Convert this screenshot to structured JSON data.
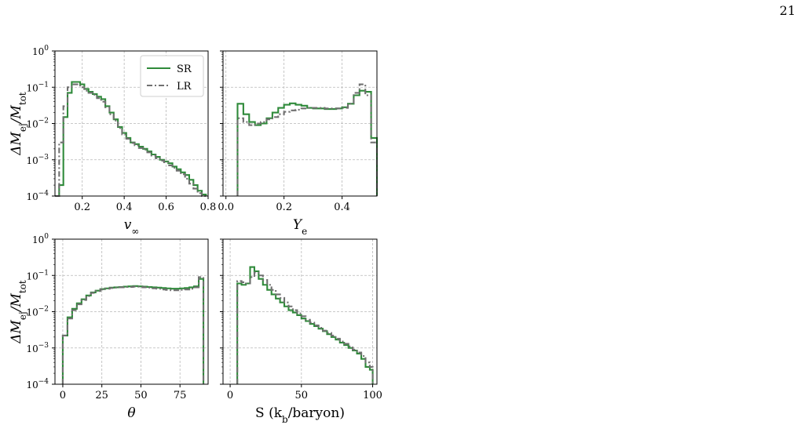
{
  "page": {
    "number": "21"
  },
  "colors": {
    "SR": "#2f8a3a",
    "LR": "#707070",
    "grid": "#b8b8b8"
  },
  "chart_data": [
    {
      "type": "histogram",
      "id": "vinf",
      "xlabel": "v_∞",
      "ylabel": "ΔM_ej/M_tot",
      "xlim": [
        0.07,
        0.8
      ],
      "ylim": [
        0.0001,
        1
      ],
      "yscale": "log",
      "xticks": [
        0.2,
        0.4,
        0.6,
        0.8
      ],
      "xtick_labels": [
        "0.2",
        "0.4",
        "0.6",
        "0.8"
      ],
      "yticks_exp": [
        -4,
        -3,
        -2,
        -1,
        0
      ],
      "grid": true,
      "legend": {
        "location": "upper right",
        "entries": [
          "SR",
          "LR"
        ]
      },
      "series": [
        {
          "name": "SR",
          "style": "solid",
          "edges": [
            0.07,
            0.09,
            0.11,
            0.13,
            0.15,
            0.17,
            0.19,
            0.21,
            0.23,
            0.25,
            0.27,
            0.29,
            0.31,
            0.33,
            0.35,
            0.37,
            0.39,
            0.41,
            0.43,
            0.45,
            0.47,
            0.49,
            0.51,
            0.53,
            0.55,
            0.57,
            0.59,
            0.61,
            0.63,
            0.65,
            0.67,
            0.69,
            0.71,
            0.73,
            0.75,
            0.77,
            0.79
          ],
          "values": [
            0.0001,
            0.0002,
            0.015,
            0.07,
            0.14,
            0.14,
            0.12,
            0.09,
            0.075,
            0.065,
            0.055,
            0.047,
            0.03,
            0.02,
            0.013,
            0.008,
            0.0055,
            0.004,
            0.003,
            0.0027,
            0.0023,
            0.002,
            0.0017,
            0.0014,
            0.0012,
            0.001,
            0.0009,
            0.0008,
            0.00065,
            0.00055,
            0.00045,
            0.00038,
            0.00028,
            0.0002,
            0.00014,
            0.00011
          ]
        },
        {
          "name": "LR",
          "style": "dashdot",
          "edges": [
            0.07,
            0.09,
            0.11,
            0.13,
            0.15,
            0.17,
            0.19,
            0.21,
            0.23,
            0.25,
            0.27,
            0.29,
            0.31,
            0.33,
            0.35,
            0.37,
            0.39,
            0.41,
            0.43,
            0.45,
            0.47,
            0.49,
            0.51,
            0.53,
            0.55,
            0.57,
            0.59,
            0.61,
            0.63,
            0.65,
            0.67,
            0.69,
            0.71,
            0.73,
            0.75,
            0.77,
            0.79
          ],
          "values": [
            0.0001,
            0.003,
            0.03,
            0.1,
            0.12,
            0.12,
            0.1,
            0.08,
            0.07,
            0.062,
            0.05,
            0.04,
            0.028,
            0.018,
            0.012,
            0.0075,
            0.005,
            0.0038,
            0.0029,
            0.0025,
            0.0021,
            0.0019,
            0.0016,
            0.0013,
            0.0011,
            0.00095,
            0.00085,
            0.0007,
            0.0006,
            0.0005,
            0.0004,
            0.0003,
            0.00022,
            0.00016,
            0.00012,
            0.0001
          ]
        }
      ]
    },
    {
      "type": "histogram",
      "id": "ye",
      "xlabel": "Y_e",
      "ylabel": "",
      "xlim": [
        -0.01,
        0.52
      ],
      "ylim": [
        0.0001,
        1
      ],
      "yscale": "log",
      "xticks": [
        0.0,
        0.2,
        0.4
      ],
      "xtick_labels": [
        "0.0",
        "0.2",
        "0.4"
      ],
      "yticks_exp": [
        -4,
        -3,
        -2,
        -1,
        0
      ],
      "grid": true,
      "series": [
        {
          "name": "SR",
          "style": "solid",
          "edges": [
            0.04,
            0.06,
            0.08,
            0.1,
            0.12,
            0.14,
            0.16,
            0.18,
            0.2,
            0.22,
            0.24,
            0.26,
            0.28,
            0.3,
            0.32,
            0.34,
            0.36,
            0.38,
            0.4,
            0.42,
            0.44,
            0.46,
            0.48,
            0.5,
            0.52
          ],
          "values": [
            0.035,
            0.018,
            0.011,
            0.009,
            0.01,
            0.014,
            0.02,
            0.027,
            0.033,
            0.036,
            0.033,
            0.031,
            0.027,
            0.026,
            0.026,
            0.025,
            0.025,
            0.026,
            0.028,
            0.035,
            0.06,
            0.08,
            0.075,
            0.004
          ]
        },
        {
          "name": "LR",
          "style": "dashdot",
          "edges": [
            0.04,
            0.06,
            0.08,
            0.1,
            0.12,
            0.14,
            0.16,
            0.18,
            0.2,
            0.22,
            0.24,
            0.26,
            0.28,
            0.3,
            0.32,
            0.34,
            0.36,
            0.38,
            0.4,
            0.42,
            0.44,
            0.46,
            0.48,
            0.5,
            0.52
          ],
          "values": [
            0.014,
            0.011,
            0.009,
            0.01,
            0.011,
            0.013,
            0.015,
            0.018,
            0.021,
            0.023,
            0.024,
            0.026,
            0.027,
            0.027,
            0.027,
            0.026,
            0.026,
            0.026,
            0.027,
            0.035,
            0.07,
            0.12,
            0.06,
            0.003
          ]
        }
      ]
    },
    {
      "type": "histogram",
      "id": "theta",
      "xlabel": "θ",
      "ylabel": "ΔM_ej/M_tot",
      "xlim": [
        -5,
        93
      ],
      "ylim": [
        0.0001,
        1
      ],
      "yscale": "log",
      "xticks": [
        0,
        25,
        50,
        75
      ],
      "xtick_labels": [
        "0",
        "25",
        "50",
        "75"
      ],
      "yticks_exp": [
        -4,
        -3,
        -2,
        -1,
        0
      ],
      "grid": true,
      "series": [
        {
          "name": "SR",
          "style": "solid",
          "edges": [
            0,
            3,
            6,
            9,
            12,
            15,
            18,
            21,
            24,
            27,
            30,
            33,
            36,
            39,
            42,
            45,
            48,
            51,
            54,
            57,
            60,
            63,
            66,
            69,
            72,
            75,
            78,
            81,
            84,
            87,
            90
          ],
          "values": [
            0.0022,
            0.007,
            0.012,
            0.017,
            0.022,
            0.028,
            0.034,
            0.038,
            0.042,
            0.044,
            0.046,
            0.047,
            0.048,
            0.049,
            0.05,
            0.051,
            0.05,
            0.049,
            0.048,
            0.047,
            0.046,
            0.045,
            0.044,
            0.043,
            0.043,
            0.044,
            0.045,
            0.047,
            0.05,
            0.08
          ]
        },
        {
          "name": "LR",
          "style": "dashdot",
          "edges": [
            0,
            3,
            6,
            9,
            12,
            15,
            18,
            21,
            24,
            27,
            30,
            33,
            36,
            39,
            42,
            45,
            48,
            51,
            54,
            57,
            60,
            63,
            66,
            69,
            72,
            75,
            78,
            81,
            84,
            87,
            90
          ],
          "values": [
            0.0022,
            0.0065,
            0.011,
            0.016,
            0.021,
            0.027,
            0.033,
            0.037,
            0.041,
            0.043,
            0.045,
            0.046,
            0.047,
            0.048,
            0.048,
            0.049,
            0.049,
            0.047,
            0.046,
            0.044,
            0.043,
            0.041,
            0.04,
            0.039,
            0.039,
            0.04,
            0.041,
            0.043,
            0.047,
            0.09
          ]
        }
      ]
    },
    {
      "type": "histogram",
      "id": "entropy",
      "xlabel": "S (k_b/baryon)",
      "ylabel": "",
      "xlim": [
        -5,
        103
      ],
      "ylim": [
        0.0001,
        1
      ],
      "yscale": "log",
      "xticks": [
        0,
        50,
        100
      ],
      "xtick_labels": [
        "0",
        "50",
        "100"
      ],
      "yticks_exp": [
        -4,
        -3,
        -2,
        -1,
        0
      ],
      "grid": true,
      "series": [
        {
          "name": "SR",
          "style": "solid",
          "edges": [
            5,
            8,
            11,
            14,
            17,
            20,
            23,
            26,
            29,
            32,
            35,
            38,
            41,
            44,
            47,
            50,
            53,
            56,
            59,
            62,
            65,
            68,
            71,
            74,
            77,
            80,
            83,
            86,
            89,
            92,
            95,
            98,
            100
          ],
          "values": [
            0.06,
            0.055,
            0.06,
            0.17,
            0.13,
            0.08,
            0.055,
            0.04,
            0.03,
            0.023,
            0.018,
            0.014,
            0.011,
            0.0095,
            0.008,
            0.0065,
            0.0055,
            0.0046,
            0.004,
            0.0034,
            0.0029,
            0.0024,
            0.002,
            0.0017,
            0.0014,
            0.0012,
            0.001,
            0.00085,
            0.0007,
            0.0005,
            0.0003,
            0.00025
          ]
        },
        {
          "name": "LR",
          "style": "dashdot",
          "edges": [
            5,
            8,
            11,
            14,
            17,
            20,
            23,
            26,
            29,
            32,
            35,
            38,
            41,
            44,
            47,
            50,
            53,
            56,
            59,
            62,
            65,
            68,
            71,
            74,
            77,
            80,
            83,
            86,
            89,
            92,
            95,
            98,
            100
          ],
          "values": [
            0.07,
            0.065,
            0.06,
            0.09,
            0.12,
            0.1,
            0.075,
            0.055,
            0.04,
            0.03,
            0.024,
            0.018,
            0.014,
            0.011,
            0.009,
            0.0075,
            0.006,
            0.005,
            0.0042,
            0.0036,
            0.003,
            0.0026,
            0.0022,
            0.0018,
            0.0015,
            0.0013,
            0.0011,
            0.0009,
            0.00075,
            0.0006,
            0.0004,
            0.0003
          ]
        }
      ]
    }
  ]
}
